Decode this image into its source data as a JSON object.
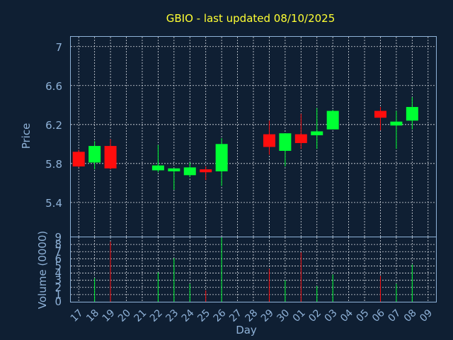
{
  "chart_data": [
    {
      "type": "candlestick",
      "title": "GBIO - last updated 08/10/2025",
      "ylabel": "Price",
      "ylim": [
        5.05,
        7.1
      ],
      "yticks": [
        5.4,
        5.8,
        6.2,
        6.6,
        7.0
      ],
      "ytick_labels": [
        "5.4",
        "5.8",
        "6.2",
        "6.6",
        "7"
      ],
      "grid": true,
      "colors": {
        "up": "#00ff33",
        "down": "#ff0d0d"
      },
      "candles": [
        {
          "day": "17",
          "open": 5.92,
          "high": 5.94,
          "low": 5.76,
          "close": 5.77
        },
        {
          "day": "18",
          "open": 5.81,
          "high": 6.03,
          "low": 5.74,
          "close": 5.98
        },
        {
          "day": "19",
          "open": 5.98,
          "high": 6.05,
          "low": 5.74,
          "close": 5.75
        },
        {
          "day": "22",
          "open": 5.73,
          "high": 5.99,
          "low": 5.71,
          "close": 5.78
        },
        {
          "day": "23",
          "open": 5.72,
          "high": 5.75,
          "low": 5.53,
          "close": 5.75
        },
        {
          "day": "24",
          "open": 5.68,
          "high": 5.81,
          "low": 5.66,
          "close": 5.76
        },
        {
          "day": "25",
          "open": 5.74,
          "high": 5.77,
          "low": 5.63,
          "close": 5.71
        },
        {
          "day": "26",
          "open": 5.72,
          "high": 6.06,
          "low": 5.57,
          "close": 6.0
        },
        {
          "day": "29",
          "open": 6.1,
          "high": 6.24,
          "low": 5.89,
          "close": 5.97
        },
        {
          "day": "30",
          "open": 5.93,
          "high": 6.11,
          "low": 5.77,
          "close": 6.11
        },
        {
          "day": "01",
          "open": 6.1,
          "high": 6.31,
          "low": 5.95,
          "close": 6.01
        },
        {
          "day": "02",
          "open": 6.09,
          "high": 6.37,
          "low": 5.95,
          "close": 6.13
        },
        {
          "day": "03",
          "open": 6.15,
          "high": 6.35,
          "low": 6.15,
          "close": 6.34
        },
        {
          "day": "06",
          "open": 6.34,
          "high": 6.38,
          "low": 6.14,
          "close": 6.27
        },
        {
          "day": "07",
          "open": 6.19,
          "high": 6.34,
          "low": 5.95,
          "close": 6.23
        },
        {
          "day": "08",
          "open": 6.24,
          "high": 6.48,
          "low": 6.15,
          "close": 6.38
        }
      ]
    },
    {
      "type": "bar",
      "xlabel": "Day",
      "ylabel": "Volume (0000)",
      "ylim": [
        0,
        9
      ],
      "yticks": [
        0,
        1,
        2,
        3,
        4,
        5,
        6,
        7,
        8,
        9
      ],
      "ytick_labels": [
        "0",
        "1",
        "2",
        "3",
        "4",
        "5",
        "6",
        "7",
        "8",
        "9"
      ],
      "grid": true,
      "categories": [
        "17",
        "18",
        "19",
        "20",
        "21",
        "22",
        "23",
        "24",
        "25",
        "26",
        "27",
        "28",
        "29",
        "30",
        "01",
        "02",
        "03",
        "04",
        "05",
        "06",
        "07",
        "08",
        "09"
      ],
      "volumes": [
        {
          "day": "18",
          "value": 3.3,
          "direction": "up"
        },
        {
          "day": "19",
          "value": 8.4,
          "direction": "down"
        },
        {
          "day": "22",
          "value": 4.1,
          "direction": "up"
        },
        {
          "day": "23",
          "value": 6.1,
          "direction": "up"
        },
        {
          "day": "24",
          "value": 2.5,
          "direction": "up"
        },
        {
          "day": "25",
          "value": 1.6,
          "direction": "down"
        },
        {
          "day": "26",
          "value": 9.0,
          "direction": "up"
        },
        {
          "day": "29",
          "value": 4.6,
          "direction": "down"
        },
        {
          "day": "30",
          "value": 3.0,
          "direction": "up"
        },
        {
          "day": "01",
          "value": 6.9,
          "direction": "down"
        },
        {
          "day": "02",
          "value": 2.2,
          "direction": "up"
        },
        {
          "day": "03",
          "value": 3.8,
          "direction": "up"
        },
        {
          "day": "06",
          "value": 3.6,
          "direction": "down"
        },
        {
          "day": "07",
          "value": 2.5,
          "direction": "up"
        },
        {
          "day": "08",
          "value": 5.2,
          "direction": "up"
        }
      ]
    }
  ]
}
